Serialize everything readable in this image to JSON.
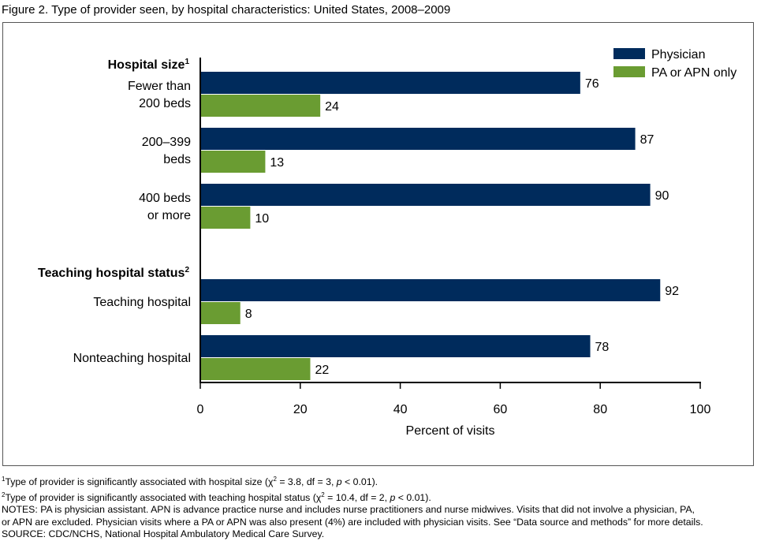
{
  "title": "Figure 2. Type of provider seen, by hospital characteristics: United States, 2008–2009",
  "chart_data": {
    "type": "bar",
    "orientation": "horizontal",
    "groups": [
      {
        "heading": "Hospital size",
        "heading_sup": "1",
        "categories": [
          "Fewer than\n200 beds",
          "200–399\nbeds",
          "400 beds\nor more"
        ]
      },
      {
        "heading": "Teaching hospital status",
        "heading_sup": "2",
        "categories": [
          "Teaching hospital",
          "Nonteaching hospital"
        ]
      }
    ],
    "series": [
      {
        "name": "Physician",
        "color": "#002b5c",
        "values": [
          76,
          87,
          90,
          92,
          78
        ]
      },
      {
        "name": "PA or APN only",
        "color": "#6a9c32",
        "values": [
          24,
          13,
          10,
          8,
          22
        ]
      }
    ],
    "xlabel": "Percent of visits",
    "xlim": [
      0,
      100
    ],
    "xticks": [
      0,
      20,
      40,
      60,
      80,
      100
    ],
    "grid": false,
    "legend": "top-right"
  },
  "notes": {
    "footnote1_sup": "1",
    "footnote1_pre": "Type of provider is significantly associated with hospital size (χ",
    "footnote1_chi_sup": "2",
    "footnote1_mid": " = 3.8, df = 3, ",
    "footnote1_p": "p",
    "footnote1_post": " < 0.01).",
    "footnote2_sup": "2",
    "footnote2_pre": "Type of provider is significantly associated with teaching hospital status (χ",
    "footnote2_chi_sup": "2",
    "footnote2_mid": " = 10.4, df = 2, ",
    "footnote2_p": "p",
    "footnote2_post": " < 0.01).",
    "notes_line1": "NOTES: PA is physician assistant. APN is advance practice nurse and includes nurse practitioners and nurse midwives. Visits that did not involve a physician, PA,",
    "notes_line2": "or APN are excluded. Physician visits where a PA or APN was also present (4%) are included with physician visits. See “Data source and methods” for more details.",
    "source": "SOURCE: CDC/NCHS, National Hospital Ambulatory Medical Care Survey."
  }
}
